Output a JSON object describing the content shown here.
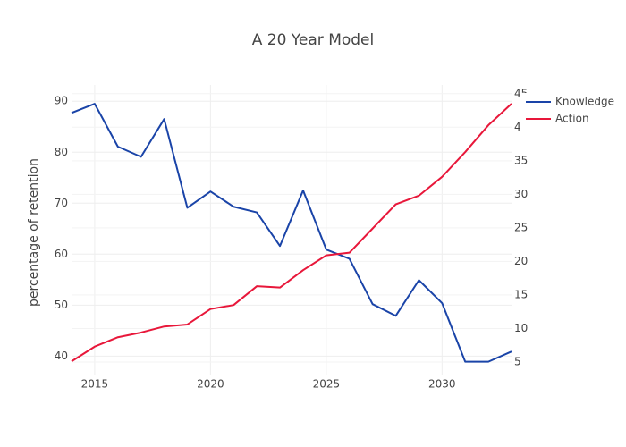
{
  "chart_data": {
    "type": "line",
    "title": "A 20 Year Model",
    "y_label": "percentage of retention",
    "x": [
      2014,
      2015,
      2016,
      2017,
      2018,
      2019,
      2020,
      2021,
      2022,
      2023,
      2024,
      2025,
      2026,
      2027,
      2028,
      2029,
      2030,
      2031,
      2032,
      2033
    ],
    "series": [
      {
        "name": "Knowledge",
        "color": "#1a44a8",
        "axis": "y",
        "values": [
          87.7,
          89.5,
          81.1,
          79.1,
          86.5,
          69.1,
          72.3,
          69.3,
          68.2,
          61.6,
          72.5,
          60.9,
          59.1,
          50.2,
          47.9,
          54.9,
          50.4,
          38.9,
          38.9,
          40.9
        ]
      },
      {
        "name": "Action",
        "color": "#e8173a",
        "axis": "y2",
        "values": [
          5.1,
          7.3,
          8.7,
          9.4,
          10.3,
          10.6,
          12.9,
          13.5,
          16.3,
          16.1,
          18.7,
          20.9,
          21.3,
          24.9,
          28.5,
          29.8,
          32.6,
          36.3,
          40.3,
          43.5
        ]
      }
    ],
    "xlim": [
      2014,
      2033
    ],
    "xticks": [
      2015,
      2020,
      2025,
      2030
    ],
    "ylim": [
      36.2,
      93.2
    ],
    "yticks": [
      40,
      50,
      60,
      70,
      80,
      90
    ],
    "y2lim": [
      3,
      46.3
    ],
    "y2ticks": [
      5,
      10,
      15,
      20,
      25,
      30,
      35,
      40,
      45
    ],
    "grid": true,
    "legend": "top-right"
  }
}
